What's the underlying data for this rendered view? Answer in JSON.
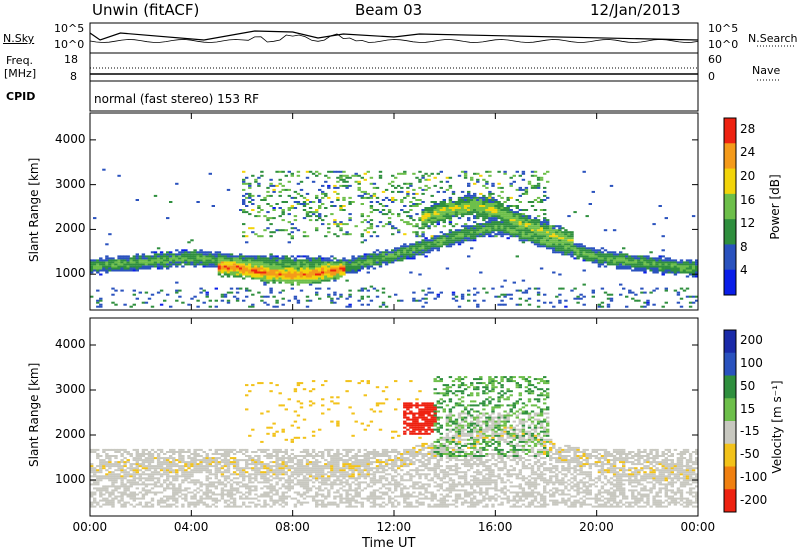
{
  "header": {
    "radar": "Unwin (fitACF)",
    "beam": "Beam 03",
    "date": "12/Jan/2013"
  },
  "top_panels": {
    "nsky_label": "N.Sky",
    "nsearch_label": "N.Search",
    "noise_ticks": [
      "10^5",
      "10^0"
    ],
    "freq_label_1": "Freq.",
    "freq_label_2": "[MHz]",
    "freq_ticks": [
      "18",
      "8"
    ],
    "nave_label": "Nave",
    "nave_ticks": [
      "60",
      "0"
    ],
    "cpid_label": "CPID",
    "cpid_value": "normal (fast stereo) 153 RF"
  },
  "chart_data": [
    {
      "type": "heatmap",
      "name": "power",
      "title": "",
      "xlabel": "Time UT",
      "ylabel": "Slant Range [km]",
      "x_ticks": [
        "00:00",
        "04:00",
        "08:00",
        "12:00",
        "16:00",
        "20:00",
        "00:00"
      ],
      "xlim_hours": [
        0,
        24
      ],
      "ylim": [
        200,
        4600
      ],
      "y_ticks": [
        1000,
        2000,
        3000,
        4000
      ],
      "colorbar": {
        "label": "Power [dB]",
        "ticks": [
          4,
          8,
          12,
          16,
          20,
          24,
          28
        ],
        "range": [
          0,
          30
        ],
        "colors": [
          "#0a1ee8",
          "#2a52be",
          "#2f8f3e",
          "#6dbf4a",
          "#f2d40a",
          "#f49a1a",
          "#ee2211"
        ]
      },
      "bands": [
        {
          "times": [
            0,
            2,
            4,
            6,
            8,
            10,
            12,
            14,
            16,
            18,
            20,
            22,
            24
          ],
          "center_km": [
            1150,
            1250,
            1350,
            1250,
            1200,
            1150,
            1400,
            1750,
            2050,
            1700,
            1350,
            1200,
            1100
          ],
          "half_width_km": 150,
          "level_db": 14
        },
        {
          "times": [
            5,
            6,
            7,
            8,
            9,
            10
          ],
          "center_km": [
            1150,
            1100,
            1000,
            950,
            1000,
            1100
          ],
          "half_width_km": 180,
          "level_db": 26
        },
        {
          "times": [
            13,
            14,
            15,
            16,
            17,
            18,
            19
          ],
          "center_km": [
            2200,
            2400,
            2500,
            2400,
            2100,
            1900,
            1700
          ],
          "half_width_km": 200,
          "level_db": 18
        }
      ]
    },
    {
      "type": "heatmap",
      "name": "velocity",
      "title": "",
      "xlabel": "Time UT",
      "ylabel": "Slant Range [km]",
      "x_ticks": [
        "00:00",
        "04:00",
        "08:00",
        "12:00",
        "16:00",
        "20:00",
        "00:00"
      ],
      "xlim_hours": [
        0,
        24
      ],
      "ylim": [
        200,
        4600
      ],
      "y_ticks": [
        1000,
        2000,
        3000,
        4000
      ],
      "colorbar": {
        "label": "Velocity [m s⁻¹]",
        "ticks": [
          "200",
          "100",
          "50",
          "15",
          "-15",
          "-50",
          "-100",
          "-200"
        ],
        "colors": [
          "#1a2aa8",
          "#2a52be",
          "#2f8f3e",
          "#6dbf4a",
          "#c8c8c0",
          "#f2c21a",
          "#f08010",
          "#ee2211"
        ]
      },
      "features": [
        {
          "desc": "ground scatter grey",
          "time_range": [
            0,
            24
          ],
          "range_km": [
            400,
            1600
          ],
          "velocity": 0
        },
        {
          "desc": "negative velocity patch",
          "time_range": [
            12.3,
            13.6
          ],
          "range_km": [
            2000,
            2700
          ],
          "velocity": -200
        },
        {
          "desc": "positive velocity streaks",
          "time_range": [
            13.5,
            18
          ],
          "range_km": [
            1500,
            3300
          ],
          "velocity": 50
        }
      ]
    }
  ]
}
